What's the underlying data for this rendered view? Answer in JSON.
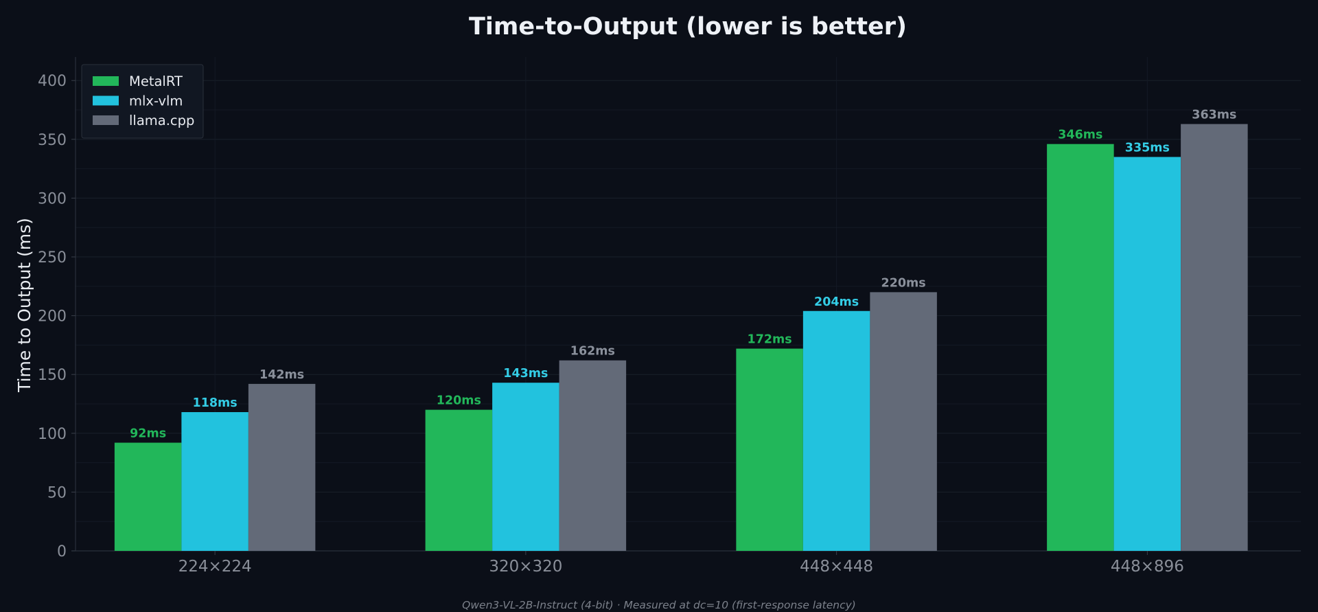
{
  "chart_data": {
    "type": "bar",
    "title": "Time-to-Output (lower is better)",
    "ylabel": "Time to Output (ms)",
    "xlabel": "",
    "ylim": [
      0,
      420
    ],
    "yticks": [
      0,
      50,
      100,
      150,
      200,
      250,
      300,
      350,
      400
    ],
    "categories": [
      "224×224",
      "320×320",
      "448×448",
      "448×896"
    ],
    "series": [
      {
        "name": "MetalRT",
        "color": "#22b75a",
        "label_color": "#22b75a",
        "values": [
          92,
          120,
          172,
          346
        ],
        "labels": [
          "92ms",
          "120ms",
          "172ms",
          "346ms"
        ]
      },
      {
        "name": "mlx-vlm",
        "color": "#22c2de",
        "label_color": "#34cde6",
        "values": [
          118,
          143,
          204,
          335
        ],
        "labels": [
          "118ms",
          "143ms",
          "204ms",
          "335ms"
        ]
      },
      {
        "name": "llama.cpp",
        "color": "#636a78",
        "label_color": "#8a909b",
        "values": [
          142,
          162,
          220,
          363
        ],
        "labels": [
          "142ms",
          "162ms",
          "220ms",
          "363ms"
        ]
      }
    ],
    "legend_position": "top-left",
    "grid": true,
    "footnote": "Qwen3-VL-2B-Instruct (4-bit) · Measured at dc=10 (first-response latency)"
  }
}
